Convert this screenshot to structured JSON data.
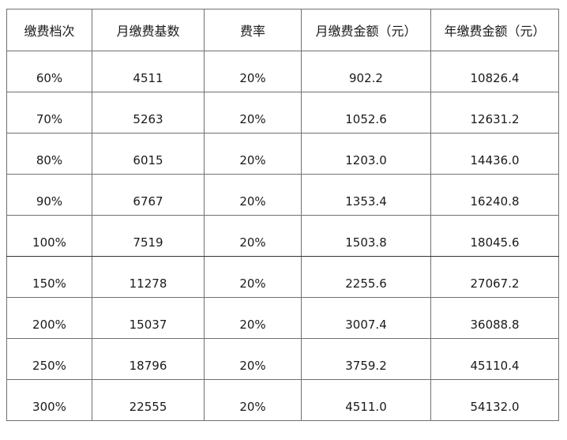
{
  "table": {
    "headers": [
      "缴费档次",
      "月缴费基数",
      "费率",
      "月缴费金额（元）",
      "年缴费金额（元）"
    ],
    "rows": [
      [
        "60%",
        "4511",
        "20%",
        "902.2",
        "10826.4"
      ],
      [
        "70%",
        "5263",
        "20%",
        "1052.6",
        "12631.2"
      ],
      [
        "80%",
        "6015",
        "20%",
        "1203.0",
        "14436.0"
      ],
      [
        "90%",
        "6767",
        "20%",
        "1353.4",
        "16240.8"
      ],
      [
        "100%",
        "7519",
        "20%",
        "1503.8",
        "18045.6"
      ],
      [
        "150%",
        "11278",
        "20%",
        "2255.6",
        "27067.2"
      ],
      [
        "200%",
        "15037",
        "20%",
        "3007.4",
        "36088.8"
      ],
      [
        "250%",
        "18796",
        "20%",
        "3759.2",
        "45110.4"
      ],
      [
        "300%",
        "22555",
        "20%",
        "4511.0",
        "54132.0"
      ]
    ]
  }
}
